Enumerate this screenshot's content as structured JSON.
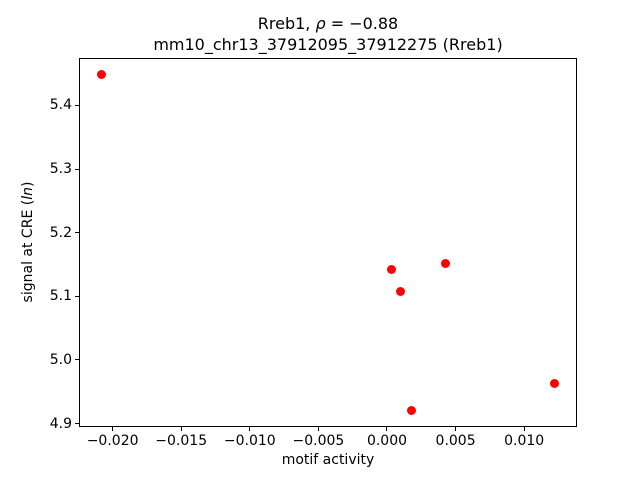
{
  "titles": {
    "line1": {
      "prefix": "Rreb1, ",
      "rho": "ρ",
      "suffix": " = −0.88"
    },
    "line2": "mm10_chr13_37912095_37912275 (Rreb1)"
  },
  "labels": {
    "xlabel": "motif activity",
    "ylabel": {
      "prefix": "signal at CRE (",
      "italic": "ln",
      "suffix": ")"
    }
  },
  "chart_data": {
    "type": "scatter",
    "title": "Rreb1, ρ = −0.88",
    "subtitle": "mm10_chr13_37912095_37912275 (Rreb1)",
    "xlabel": "motif activity",
    "ylabel": "signal at CRE (ln)",
    "marker_color": "#ff0000",
    "marker_style": "filled-circle",
    "grid": false,
    "legend": false,
    "xlim": [
      -0.02245,
      0.01385
    ],
    "ylim": [
      4.8947,
      5.4744
    ],
    "xticks": [
      -0.02,
      -0.015,
      -0.01,
      -0.005,
      0.0,
      0.005,
      0.01
    ],
    "xtick_labels": [
      "−0.020",
      "−0.015",
      "−0.010",
      "−0.005",
      "0.000",
      "0.005",
      "0.010"
    ],
    "yticks": [
      4.9,
      5.0,
      5.1,
      5.2,
      5.3,
      5.4
    ],
    "ytick_labels": [
      "4.9",
      "5.0",
      "5.1",
      "5.2",
      "5.3",
      "5.4"
    ],
    "points": [
      {
        "x": -0.0208,
        "y": 5.449
      },
      {
        "x": 0.0003,
        "y": 5.142
      },
      {
        "x": 0.001,
        "y": 5.108
      },
      {
        "x": 0.0043,
        "y": 5.152
      },
      {
        "x": 0.0018,
        "y": 4.921
      },
      {
        "x": 0.0122,
        "y": 4.963
      }
    ]
  }
}
